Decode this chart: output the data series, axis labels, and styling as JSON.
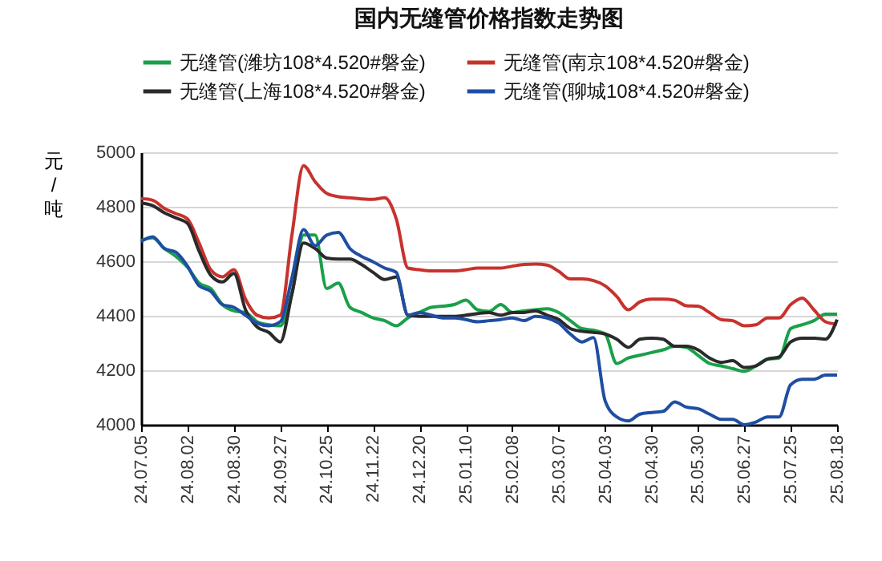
{
  "chart_data": {
    "type": "line",
    "title": "国内无缝管价格指数走势图",
    "ylabel": "元/吨",
    "categories": [
      "24.07.05",
      null,
      null,
      null,
      "24.08.02",
      null,
      null,
      null,
      "24.08.30",
      null,
      null,
      null,
      "24.09.27",
      null,
      null,
      null,
      "24.10.25",
      null,
      null,
      null,
      "24.11.22",
      null,
      null,
      null,
      "24.12.20",
      null,
      null,
      null,
      "25.01.10",
      null,
      null,
      null,
      "25.02.08",
      null,
      null,
      null,
      "25.03.07",
      null,
      null,
      null,
      "25.04.03",
      null,
      null,
      null,
      "25.04.30",
      null,
      null,
      null,
      "25.05.30",
      null,
      null,
      null,
      "25.06.27",
      null,
      null,
      null,
      "25.07.25",
      null,
      null,
      null,
      "25.08.18"
    ],
    "series": [
      {
        "name": "无缝管(潍坊108*4.520#磐金)",
        "color": "#1aa04a",
        "values": [
          4676,
          4686,
          4647,
          4618,
          4578,
          4520,
          4500,
          4441,
          4418,
          4412,
          4378,
          4367,
          4363,
          4480,
          4696,
          4696,
          4500,
          4520,
          4431,
          4412,
          4392,
          4382,
          4363,
          4392,
          4412,
          4431,
          4435,
          4441,
          4457,
          4422,
          4416,
          4441,
          4412,
          4418,
          4422,
          4426,
          4412,
          4382,
          4353,
          4347,
          4333,
          4225,
          4245,
          4255,
          4265,
          4275,
          4288,
          4284,
          4255,
          4225,
          4216,
          4206,
          4196,
          4216,
          4241,
          4245,
          4353,
          4367,
          4382,
          4406,
          4406
        ]
      },
      {
        "name": "无缝管(南京108*4.520#磐金)",
        "color": "#c8322d",
        "values": [
          4830,
          4824,
          4794,
          4775,
          4755,
          4667,
          4569,
          4543,
          4569,
          4461,
          4402,
          4392,
          4402,
          4696,
          4951,
          4892,
          4849,
          4837,
          4833,
          4829,
          4827,
          4833,
          4755,
          4575,
          4569,
          4565,
          4565,
          4565,
          4569,
          4575,
          4575,
          4575,
          4582,
          4588,
          4590,
          4586,
          4563,
          4535,
          4535,
          4529,
          4510,
          4471,
          4422,
          4451,
          4461,
          4461,
          4457,
          4437,
          4435,
          4412,
          4386,
          4382,
          4363,
          4367,
          4392,
          4392,
          4441,
          4465,
          4422,
          4378,
          4369
        ]
      },
      {
        "name": "无缝管(上海108*4.520#磐金)",
        "color": "#2a2a2a",
        "values": [
          4814,
          4804,
          4778,
          4759,
          4739,
          4637,
          4549,
          4524,
          4555,
          4422,
          4359,
          4339,
          4304,
          4480,
          4667,
          4647,
          4612,
          4608,
          4608,
          4588,
          4559,
          4533,
          4543,
          4402,
          4398,
          4398,
          4398,
          4398,
          4402,
          4408,
          4412,
          4402,
          4412,
          4412,
          4418,
          4402,
          4386,
          4353,
          4343,
          4339,
          4333,
          4314,
          4284,
          4314,
          4318,
          4314,
          4288,
          4288,
          4275,
          4245,
          4229,
          4235,
          4210,
          4216,
          4241,
          4249,
          4304,
          4318,
          4318,
          4314,
          4386
        ]
      },
      {
        "name": "无缝管(聊城108*4.520#磐金)",
        "color": "#1f4ea3",
        "values": [
          4673,
          4690,
          4647,
          4633,
          4582,
          4510,
          4490,
          4441,
          4431,
          4402,
          4373,
          4363,
          4378,
          4539,
          4716,
          4657,
          4696,
          4706,
          4647,
          4618,
          4598,
          4575,
          4559,
          4402,
          4412,
          4402,
          4392,
          4392,
          4386,
          4378,
          4382,
          4386,
          4392,
          4382,
          4398,
          4392,
          4373,
          4333,
          4304,
          4320,
          4088,
          4029,
          4014,
          4039,
          4045,
          4049,
          4084,
          4065,
          4059,
          4039,
          4020,
          4020,
          4000,
          4010,
          4029,
          4029,
          4147,
          4167,
          4167,
          4182,
          4182
        ]
      }
    ],
    "ylim": [
      4000,
      5000
    ],
    "yticks": [
      4000,
      4200,
      4400,
      4600,
      4800,
      5000
    ],
    "grid": "y",
    "legend": "top",
    "line_style": "solid",
    "marker": "none"
  }
}
